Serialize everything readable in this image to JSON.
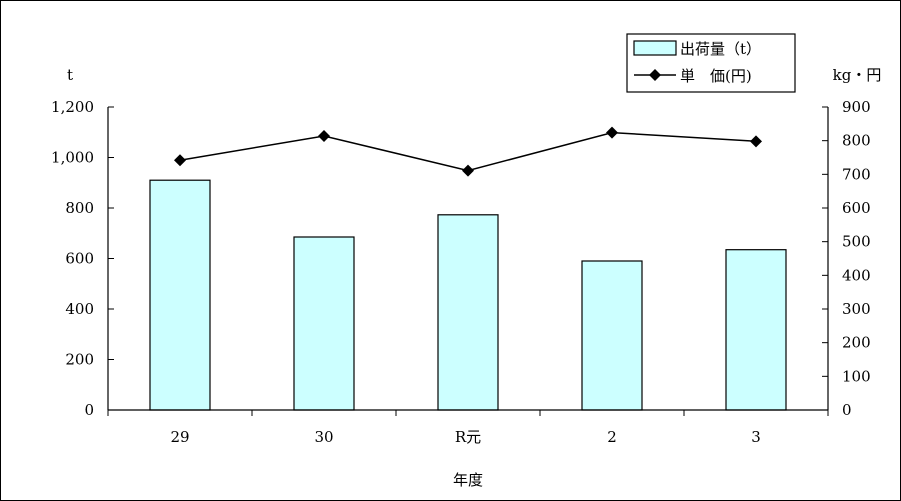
{
  "chart_data": {
    "type": "bar",
    "xlabel": "年度",
    "categories": [
      "29",
      "30",
      "R元",
      "2",
      "3"
    ],
    "y_left": {
      "unit": "t",
      "ticks": [
        "0",
        "200",
        "400",
        "600",
        "800",
        "1,000",
        "1,200"
      ],
      "range": [
        0,
        1200
      ]
    },
    "y_right": {
      "unit": "kg・円",
      "ticks": [
        "0",
        "100",
        "200",
        "300",
        "400",
        "500",
        "600",
        "700",
        "800",
        "900"
      ],
      "range": [
        0,
        900
      ]
    },
    "series": [
      {
        "name": "出荷量（t）",
        "kind": "bar",
        "axis": "left",
        "color": "#ccffff",
        "values": [
          910,
          685,
          773,
          590,
          635
        ]
      },
      {
        "name": "単　価(円)",
        "kind": "line",
        "axis": "right",
        "color": "#000000",
        "values": [
          742,
          814,
          711,
          824,
          798
        ]
      }
    ]
  }
}
